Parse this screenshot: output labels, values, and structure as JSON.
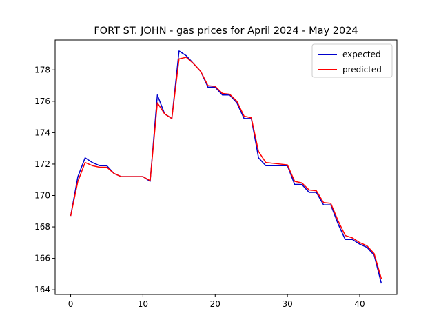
{
  "chart_data": {
    "type": "line",
    "title": "FORT ST. JOHN - gas prices for April 2024 - May 2024",
    "xlabel": "",
    "ylabel": "",
    "xlim": [
      -2.15,
      45.15
    ],
    "ylim": [
      163.7,
      179.9
    ],
    "xticks": [
      0,
      10,
      20,
      30,
      40
    ],
    "yticks": [
      164,
      166,
      168,
      170,
      172,
      174,
      176,
      178
    ],
    "grid": false,
    "legend_position": "top-right",
    "series": [
      {
        "name": "expected",
        "color": "#0000cc",
        "x": [
          0,
          1,
          2,
          3,
          4,
          5,
          6,
          7,
          8,
          9,
          10,
          11,
          12,
          13,
          14,
          15,
          16,
          17,
          18,
          19,
          20,
          21,
          22,
          23,
          24,
          25,
          26,
          27,
          28,
          29,
          30,
          31,
          32,
          33,
          34,
          35,
          36,
          37,
          38,
          39,
          40,
          41,
          42,
          43
        ],
        "values": [
          168.7,
          171.2,
          172.4,
          172.1,
          171.9,
          171.9,
          171.4,
          171.2,
          171.2,
          171.2,
          171.2,
          170.9,
          176.4,
          175.2,
          174.9,
          179.2,
          178.9,
          178.4,
          177.9,
          176.9,
          176.9,
          176.4,
          176.4,
          175.9,
          174.9,
          174.9,
          172.4,
          171.9,
          171.9,
          171.9,
          171.9,
          170.7,
          170.7,
          170.2,
          170.2,
          169.4,
          169.4,
          168.2,
          167.2,
          167.2,
          166.9,
          166.7,
          166.2,
          164.4
        ]
      },
      {
        "name": "predicted",
        "color": "#ff0000",
        "x": [
          0,
          1,
          2,
          3,
          4,
          5,
          6,
          7,
          8,
          9,
          10,
          11,
          12,
          13,
          14,
          15,
          16,
          17,
          18,
          19,
          20,
          21,
          22,
          23,
          24,
          25,
          26,
          27,
          28,
          29,
          30,
          31,
          32,
          33,
          34,
          35,
          36,
          37,
          38,
          39,
          40,
          41,
          42,
          43
        ],
        "values": [
          168.7,
          170.9,
          172.1,
          171.9,
          171.8,
          171.8,
          171.4,
          171.2,
          171.2,
          171.2,
          171.2,
          170.95,
          175.9,
          175.2,
          174.9,
          178.7,
          178.8,
          178.4,
          177.9,
          177.0,
          176.95,
          176.5,
          176.45,
          176.0,
          175.05,
          174.95,
          172.8,
          172.1,
          172.05,
          172.0,
          171.95,
          170.9,
          170.8,
          170.35,
          170.3,
          169.55,
          169.5,
          168.4,
          167.45,
          167.3,
          167.0,
          166.8,
          166.3,
          164.7
        ]
      }
    ]
  }
}
